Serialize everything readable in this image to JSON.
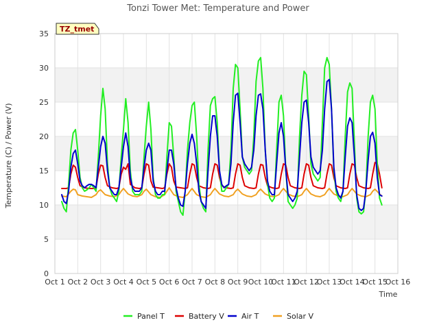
{
  "chart_data": {
    "type": "line",
    "title": "Tonzi Tower Met: Temperature and Power",
    "xlabel": "Time",
    "ylabel": "Temperature (C) / Power (V)",
    "xlim": [
      1,
      16
    ],
    "ylim": [
      0,
      35
    ],
    "yticks": [
      0,
      5,
      10,
      15,
      20,
      25,
      30,
      35
    ],
    "xticks": [
      1,
      2,
      3,
      4,
      5,
      6,
      7,
      8,
      9,
      10,
      11,
      12,
      13,
      14,
      15,
      16
    ],
    "xtick_labels": [
      "Oct 1",
      "Oct 2",
      "Oct 3",
      "Oct 4",
      "Oct 5",
      "Oct 6",
      "Oct 7",
      "Oct 8",
      "Oct 9",
      "Oct 10",
      "Oct 11",
      "Oct 12",
      "Oct 13",
      "Oct 14",
      "Oct 15",
      "Oct 16"
    ],
    "badge": "TZ_tmet",
    "grid": true,
    "legend_position": "bottom-center",
    "series": [
      {
        "name": "Panel T",
        "color": "#22ee22",
        "x": [
          1.3,
          1.4,
          1.5,
          1.6,
          1.7,
          1.8,
          1.9,
          2.0,
          2.1,
          2.2,
          2.3,
          2.4,
          2.5,
          2.6,
          2.7,
          2.8,
          2.9,
          3.0,
          3.1,
          3.2,
          3.3,
          3.4,
          3.5,
          3.6,
          3.7,
          3.8,
          3.9,
          4.0,
          4.1,
          4.2,
          4.3,
          4.4,
          4.5,
          4.6,
          4.7,
          4.8,
          4.9,
          5.0,
          5.1,
          5.2,
          5.3,
          5.4,
          5.5,
          5.6,
          5.7,
          5.8,
          5.9,
          6.0,
          6.1,
          6.2,
          6.3,
          6.4,
          6.5,
          6.6,
          6.7,
          6.8,
          6.9,
          7.0,
          7.1,
          7.2,
          7.3,
          7.4,
          7.5,
          7.6,
          7.7,
          7.8,
          7.9,
          8.0,
          8.1,
          8.2,
          8.3,
          8.4,
          8.5,
          8.6,
          8.7,
          8.8,
          8.9,
          9.0,
          9.1,
          9.2,
          9.3,
          9.4,
          9.5,
          9.6,
          9.7,
          9.8,
          9.9,
          10.0,
          10.1,
          10.2,
          10.3,
          10.4,
          10.5,
          10.6,
          10.7,
          10.8,
          10.9,
          11.0,
          11.1,
          11.2,
          11.3,
          11.4,
          11.5,
          11.6,
          11.7,
          11.8,
          11.9,
          12.0,
          12.1,
          12.2,
          12.3,
          12.4,
          12.5,
          12.6,
          12.7,
          12.8,
          12.9,
          13.0,
          13.1,
          13.2,
          13.3,
          13.4,
          13.5,
          13.6,
          13.7,
          13.8,
          13.9,
          14.0,
          14.1,
          14.2,
          14.3,
          14.4,
          14.5,
          14.6,
          14.7,
          14.8,
          14.9,
          15.0,
          15.1,
          15.2,
          15.3
        ],
        "values": [
          10.5,
          9.5,
          9.0,
          13.0,
          18.0,
          20.5,
          21.0,
          18.0,
          14.0,
          12.5,
          12.0,
          12.2,
          12.5,
          13.0,
          12.5,
          12.0,
          17.0,
          23.0,
          27.0,
          24.0,
          16.0,
          12.5,
          11.5,
          11.0,
          10.5,
          12.0,
          17.0,
          21.0,
          25.5,
          22.0,
          15.0,
          12.0,
          11.5,
          11.5,
          11.5,
          12.0,
          17.0,
          21.5,
          25.0,
          21.0,
          14.0,
          11.5,
          11.0,
          11.0,
          11.5,
          11.5,
          17.0,
          22.0,
          21.5,
          17.0,
          12.0,
          10.5,
          9.0,
          8.5,
          12.0,
          18.0,
          22.0,
          24.5,
          25.0,
          20.0,
          13.0,
          10.5,
          9.5,
          9.0,
          18.0,
          24.5,
          25.5,
          25.8,
          22.0,
          15.0,
          12.0,
          12.0,
          12.5,
          13.0,
          18.0,
          27.0,
          30.5,
          30.0,
          24.0,
          17.0,
          15.5,
          15.0,
          14.5,
          15.0,
          20.0,
          28.0,
          31.0,
          31.5,
          27.0,
          18.0,
          13.0,
          11.0,
          10.5,
          11.0,
          18.0,
          25.0,
          26.0,
          23.0,
          15.0,
          10.5,
          10.0,
          9.5,
          10.0,
          11.0,
          20.0,
          26.0,
          29.5,
          29.0,
          23.0,
          16.0,
          14.5,
          14.0,
          13.5,
          14.0,
          22.0,
          30.0,
          31.5,
          30.5,
          24.0,
          15.0,
          12.0,
          11.0,
          10.5,
          12.0,
          20.0,
          26.5,
          27.8,
          27.0,
          19.0,
          11.0,
          9.0,
          8.7,
          9.0,
          12.0,
          20.0,
          25.0,
          26.0,
          24.0,
          16.0,
          11.0,
          10.0
        ]
      },
      {
        "name": "Battery V",
        "color": "#dd0000",
        "x": [
          1.3,
          1.5,
          1.6,
          1.7,
          1.8,
          1.9,
          2.0,
          2.1,
          2.3,
          2.5,
          2.7,
          2.8,
          2.9,
          3.0,
          3.1,
          3.2,
          3.3,
          3.5,
          3.7,
          3.8,
          3.9,
          4.0,
          4.1,
          4.2,
          4.3,
          4.5,
          4.7,
          4.8,
          4.9,
          5.0,
          5.1,
          5.2,
          5.3,
          5.5,
          5.7,
          5.8,
          5.9,
          6.0,
          6.1,
          6.2,
          6.3,
          6.5,
          6.7,
          6.8,
          6.9,
          7.0,
          7.1,
          7.2,
          7.3,
          7.5,
          7.7,
          7.8,
          7.9,
          8.0,
          8.1,
          8.2,
          8.3,
          8.5,
          8.7,
          8.8,
          8.9,
          9.0,
          9.1,
          9.2,
          9.3,
          9.5,
          9.7,
          9.8,
          9.9,
          10.0,
          10.1,
          10.2,
          10.3,
          10.5,
          10.7,
          10.8,
          10.9,
          11.0,
          11.1,
          11.2,
          11.3,
          11.5,
          11.7,
          11.8,
          11.9,
          12.0,
          12.1,
          12.2,
          12.3,
          12.5,
          12.7,
          12.8,
          12.9,
          13.0,
          13.1,
          13.2,
          13.3,
          13.5,
          13.7,
          13.8,
          13.9,
          14.0,
          14.1,
          14.2,
          14.3,
          14.5,
          14.7,
          14.8,
          14.9,
          15.0,
          15.1,
          15.2,
          15.3
        ],
        "values": [
          12.4,
          12.4,
          12.5,
          14.5,
          15.8,
          15.5,
          14.0,
          12.8,
          12.5,
          12.4,
          12.4,
          12.5,
          14.5,
          15.8,
          15.7,
          14.0,
          12.8,
          12.5,
          12.4,
          12.5,
          14.5,
          15.5,
          15.2,
          16.0,
          13.0,
          12.5,
          12.4,
          12.5,
          14.5,
          16.0,
          15.8,
          13.5,
          12.6,
          12.5,
          12.4,
          12.5,
          14.5,
          16.0,
          15.5,
          13.5,
          12.6,
          12.5,
          12.4,
          12.5,
          14.5,
          16.0,
          15.8,
          14.0,
          12.8,
          12.5,
          12.4,
          12.5,
          14.5,
          16.0,
          15.8,
          14.0,
          12.8,
          12.5,
          12.4,
          12.5,
          14.5,
          16.0,
          15.8,
          14.0,
          12.8,
          12.5,
          12.4,
          12.5,
          14.5,
          15.9,
          15.8,
          14.0,
          12.8,
          12.5,
          12.4,
          12.5,
          14.5,
          16.0,
          15.8,
          14.0,
          12.8,
          12.5,
          12.4,
          12.5,
          14.5,
          16.0,
          15.8,
          14.0,
          12.8,
          12.5,
          12.4,
          12.5,
          14.5,
          16.0,
          15.8,
          14.0,
          12.8,
          12.5,
          12.4,
          12.5,
          14.5,
          16.0,
          15.8,
          14.0,
          12.8,
          12.5,
          12.4,
          12.5,
          14.5,
          16.2,
          16.0,
          14.5,
          12.5
        ]
      },
      {
        "name": "Air T",
        "color": "#0000cc",
        "x": [
          1.3,
          1.4,
          1.5,
          1.6,
          1.7,
          1.8,
          1.9,
          2.0,
          2.1,
          2.2,
          2.3,
          2.4,
          2.5,
          2.6,
          2.7,
          2.8,
          2.9,
          3.0,
          3.1,
          3.2,
          3.3,
          3.4,
          3.5,
          3.6,
          3.7,
          3.8,
          3.9,
          4.0,
          4.1,
          4.2,
          4.3,
          4.4,
          4.5,
          4.6,
          4.7,
          4.8,
          4.9,
          5.0,
          5.1,
          5.2,
          5.3,
          5.4,
          5.5,
          5.6,
          5.7,
          5.8,
          5.9,
          6.0,
          6.1,
          6.2,
          6.3,
          6.4,
          6.5,
          6.6,
          6.7,
          6.8,
          6.9,
          7.0,
          7.1,
          7.2,
          7.3,
          7.4,
          7.5,
          7.6,
          7.7,
          7.8,
          7.9,
          8.0,
          8.1,
          8.2,
          8.3,
          8.4,
          8.5,
          8.6,
          8.7,
          8.8,
          8.9,
          9.0,
          9.1,
          9.2,
          9.3,
          9.4,
          9.5,
          9.6,
          9.7,
          9.8,
          9.9,
          10.0,
          10.1,
          10.2,
          10.3,
          10.4,
          10.5,
          10.6,
          10.7,
          10.8,
          10.9,
          11.0,
          11.1,
          11.2,
          11.3,
          11.4,
          11.5,
          11.6,
          11.7,
          11.8,
          11.9,
          12.0,
          12.1,
          12.2,
          12.3,
          12.4,
          12.5,
          12.6,
          12.7,
          12.8,
          12.9,
          13.0,
          13.1,
          13.2,
          13.3,
          13.4,
          13.5,
          13.6,
          13.7,
          13.8,
          13.9,
          14.0,
          14.1,
          14.2,
          14.3,
          14.4,
          14.5,
          14.6,
          14.7,
          14.8,
          14.9,
          15.0,
          15.1,
          15.2,
          15.3
        ],
        "values": [
          11.5,
          10.5,
          10.2,
          12.0,
          15.5,
          17.5,
          18.0,
          16.0,
          13.5,
          12.8,
          12.5,
          12.8,
          13.0,
          13.0,
          12.8,
          12.5,
          15.5,
          18.5,
          20.0,
          19.0,
          15.0,
          12.5,
          12.0,
          11.5,
          11.5,
          12.5,
          15.5,
          18.5,
          20.5,
          18.5,
          14.0,
          12.5,
          12.0,
          12.0,
          12.0,
          12.5,
          15.5,
          18.0,
          19.0,
          18.0,
          13.5,
          12.0,
          11.5,
          11.5,
          12.0,
          12.0,
          15.0,
          18.0,
          18.0,
          16.0,
          12.5,
          11.0,
          10.0,
          9.8,
          12.0,
          16.0,
          19.0,
          20.3,
          19.0,
          16.0,
          12.0,
          10.5,
          10.0,
          9.5,
          15.0,
          20.0,
          23.0,
          23.0,
          20.0,
          15.0,
          13.0,
          12.5,
          12.8,
          13.0,
          16.0,
          22.0,
          26.0,
          26.3,
          22.0,
          17.0,
          16.0,
          15.5,
          15.0,
          15.5,
          18.0,
          23.0,
          26.0,
          26.2,
          24.0,
          18.0,
          13.5,
          12.0,
          11.5,
          11.5,
          16.0,
          20.5,
          22.0,
          20.0,
          15.0,
          11.5,
          11.0,
          10.5,
          11.0,
          12.0,
          17.0,
          22.0,
          25.0,
          25.3,
          22.0,
          17.0,
          15.5,
          15.0,
          14.5,
          15.0,
          18.0,
          24.0,
          28.0,
          28.3,
          24.0,
          15.5,
          12.5,
          11.5,
          11.0,
          12.0,
          17.0,
          21.5,
          22.7,
          22.0,
          17.0,
          11.5,
          9.5,
          9.2,
          9.5,
          12.0,
          16.5,
          20.0,
          20.6,
          19.0,
          14.0,
          11.5,
          11.3
        ]
      },
      {
        "name": "Solar V",
        "color": "#f0a020",
        "x": [
          1.3,
          1.5,
          1.7,
          1.8,
          1.9,
          2.0,
          2.2,
          2.4,
          2.6,
          2.8,
          2.9,
          3.0,
          3.2,
          3.4,
          3.6,
          3.8,
          3.9,
          4.0,
          4.2,
          4.4,
          4.6,
          4.8,
          4.9,
          5.0,
          5.2,
          5.4,
          5.6,
          5.8,
          5.9,
          6.0,
          6.2,
          6.4,
          6.6,
          6.8,
          6.9,
          7.0,
          7.2,
          7.4,
          7.6,
          7.8,
          7.9,
          8.0,
          8.2,
          8.4,
          8.6,
          8.8,
          8.9,
          9.0,
          9.2,
          9.4,
          9.6,
          9.8,
          9.9,
          10.0,
          10.2,
          10.4,
          10.6,
          10.8,
          10.9,
          11.0,
          11.2,
          11.4,
          11.6,
          11.8,
          11.9,
          12.0,
          12.2,
          12.4,
          12.6,
          12.8,
          12.9,
          13.0,
          13.2,
          13.4,
          13.6,
          13.8,
          13.9,
          14.0,
          14.2,
          14.4,
          14.6,
          14.8,
          14.9,
          15.0,
          15.2,
          15.3
        ],
        "values": [
          11.3,
          11.2,
          12.0,
          12.3,
          12.2,
          11.5,
          11.3,
          11.2,
          11.1,
          11.5,
          12.0,
          12.2,
          11.5,
          11.3,
          11.2,
          11.5,
          12.0,
          12.4,
          11.6,
          11.3,
          11.2,
          11.5,
          12.0,
          12.3,
          11.5,
          11.2,
          11.1,
          11.5,
          12.0,
          12.5,
          11.5,
          11.2,
          11.1,
          11.5,
          12.0,
          12.4,
          11.5,
          11.2,
          11.1,
          11.5,
          12.0,
          12.4,
          11.6,
          11.3,
          11.2,
          11.5,
          12.0,
          12.3,
          11.6,
          11.3,
          11.2,
          11.5,
          12.0,
          12.3,
          11.6,
          11.3,
          11.2,
          11.5,
          12.0,
          12.4,
          11.6,
          11.3,
          11.2,
          11.5,
          12.0,
          12.4,
          11.6,
          11.3,
          11.2,
          11.5,
          12.0,
          12.4,
          11.6,
          11.3,
          11.2,
          11.5,
          12.0,
          12.4,
          11.6,
          11.3,
          11.2,
          11.5,
          12.0,
          12.3,
          11.6,
          11.3
        ]
      }
    ]
  }
}
